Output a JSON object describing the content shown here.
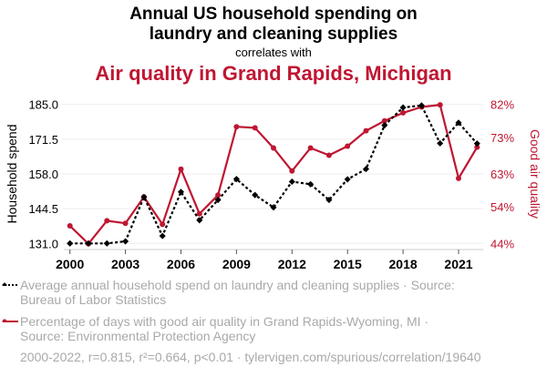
{
  "header": {
    "title": "Annual US household spending on laundry and cleaning supplies",
    "title_line1": "Annual US household spending on",
    "title_line2": "laundry and cleaning supplies",
    "connector": "correlates with",
    "subtitle": "Air quality in Grand Rapids, Michigan"
  },
  "colors": {
    "series1": "#000000",
    "series2": "#bf1632",
    "grid": "#eeeeee",
    "legend_text": "#a9a9a9"
  },
  "legend": {
    "items": [
      {
        "label": "Average annual household spend on laundry and cleaning supplies · Source:",
        "label_line2": "Bureau of Labor Statistics",
        "icon": "dotted-line-diamond-marker"
      },
      {
        "label": "Percentage of days with good air quality in Grand Rapids-Wyoming, MI ·",
        "label_line2": "Source: Environmental Protection Agency",
        "icon": "solid-line-circle-marker"
      }
    ]
  },
  "footer": {
    "stats": "2000-2022, r=0.815, r²=0.664, p<0.01 · tylervigen.com/spurious/correlation/19640"
  },
  "chart_data": {
    "type": "line",
    "title": "Annual US household spending on laundry and cleaning supplies correlates with Air quality in Grand Rapids, Michigan",
    "x": [
      2000,
      2001,
      2002,
      2003,
      2004,
      2005,
      2006,
      2007,
      2008,
      2009,
      2010,
      2011,
      2012,
      2013,
      2014,
      2015,
      2016,
      2017,
      2018,
      2019,
      2020,
      2021,
      2022
    ],
    "xlabel": "",
    "x_ticks": [
      2000,
      2003,
      2006,
      2009,
      2012,
      2015,
      2018,
      2021
    ],
    "x_tick_labels": [
      "2000",
      "2003",
      "2006",
      "2009",
      "2012",
      "2015",
      "2018",
      "2021"
    ],
    "xlim": [
      2000,
      2022
    ],
    "ylabel": "Household spend",
    "ylim": [
      131.0,
      185.0
    ],
    "y_ticks": [
      131.0,
      144.5,
      158.0,
      171.5,
      185.0
    ],
    "y_tick_labels": [
      "131.0",
      "144.5",
      "158.0",
      "171.5",
      "185.0"
    ],
    "y2label": "Good air quality",
    "y2lim": [
      44,
      82
    ],
    "y2_ticks": [
      44,
      54,
      63,
      73,
      82
    ],
    "y2_tick_labels": [
      "44%",
      "54%",
      "63%",
      "73%",
      "82%"
    ],
    "grid": true,
    "legend_position": "bottom",
    "series": [
      {
        "name": "Average annual household spend on laundry and cleaning supplies",
        "axis": "left",
        "style": "dotted",
        "marker": "diamond",
        "values": [
          131.0,
          131.0,
          131.0,
          131.8,
          149.0,
          133.9,
          151.0,
          140.0,
          147.9,
          156.0,
          149.8,
          145.0,
          155.0,
          154.0,
          147.9,
          155.9,
          159.9,
          176.9,
          183.8,
          184.6,
          169.9,
          177.9,
          169.8
        ]
      },
      {
        "name": "Percentage of days with good air quality in Grand Rapids-Wyoming, MI",
        "axis": "right",
        "style": "solid",
        "marker": "circle",
        "unit": "%",
        "values": [
          48.8,
          43.9,
          50.2,
          49.5,
          56.7,
          49.2,
          64.3,
          52.1,
          57.2,
          75.9,
          75.6,
          70.1,
          63.8,
          70.1,
          68.1,
          70.6,
          74.8,
          77.5,
          79.7,
          81.3,
          81.9,
          61.8,
          70.3
        ]
      }
    ]
  }
}
